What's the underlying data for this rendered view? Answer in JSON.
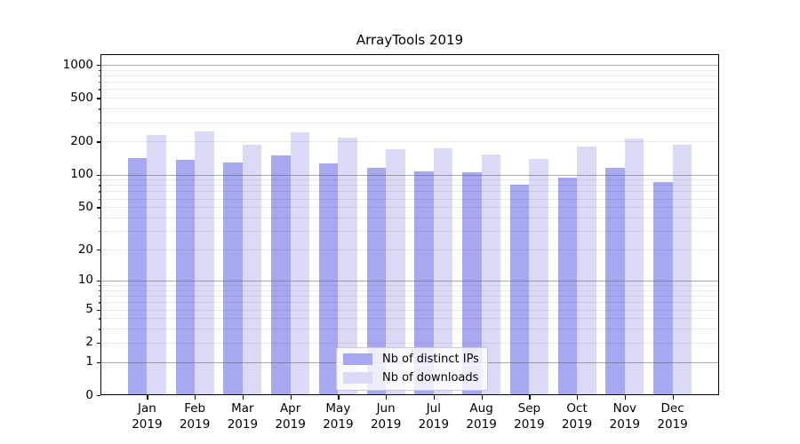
{
  "chart_data": {
    "type": "bar",
    "title": "ArrayTools 2019",
    "categories": [
      {
        "month": "Jan",
        "year": "2019"
      },
      {
        "month": "Feb",
        "year": "2019"
      },
      {
        "month": "Mar",
        "year": "2019"
      },
      {
        "month": "Apr",
        "year": "2019"
      },
      {
        "month": "May",
        "year": "2019"
      },
      {
        "month": "Jun",
        "year": "2019"
      },
      {
        "month": "Jul",
        "year": "2019"
      },
      {
        "month": "Aug",
        "year": "2019"
      },
      {
        "month": "Sep",
        "year": "2019"
      },
      {
        "month": "Oct",
        "year": "2019"
      },
      {
        "month": "Nov",
        "year": "2019"
      },
      {
        "month": "Dec",
        "year": "2019"
      }
    ],
    "series": [
      {
        "name": "Nb of distinct IPs",
        "color": "#a7a7f2",
        "values": [
          141,
          135,
          129,
          149,
          126,
          116,
          107,
          104,
          80,
          93,
          115,
          85
        ]
      },
      {
        "name": "Nb of downloads",
        "color": "#dadaf7",
        "values": [
          228,
          246,
          186,
          241,
          217,
          170,
          175,
          152,
          140,
          180,
          213,
          186
        ]
      }
    ],
    "y_axis": {
      "scale": "symlog",
      "ticks": [
        0,
        1,
        2,
        5,
        10,
        20,
        50,
        100,
        200,
        500,
        1000
      ],
      "max": 1250
    },
    "x_axis": {
      "label_lines": 2
    },
    "legend_position": "bottom-center",
    "grid": true,
    "colors": {
      "grid_major": "rgba(100,100,100,0.55)",
      "grid_minor": "rgba(0,0,0,0.08)",
      "axis": "#000000",
      "background": "#ffffff"
    }
  }
}
